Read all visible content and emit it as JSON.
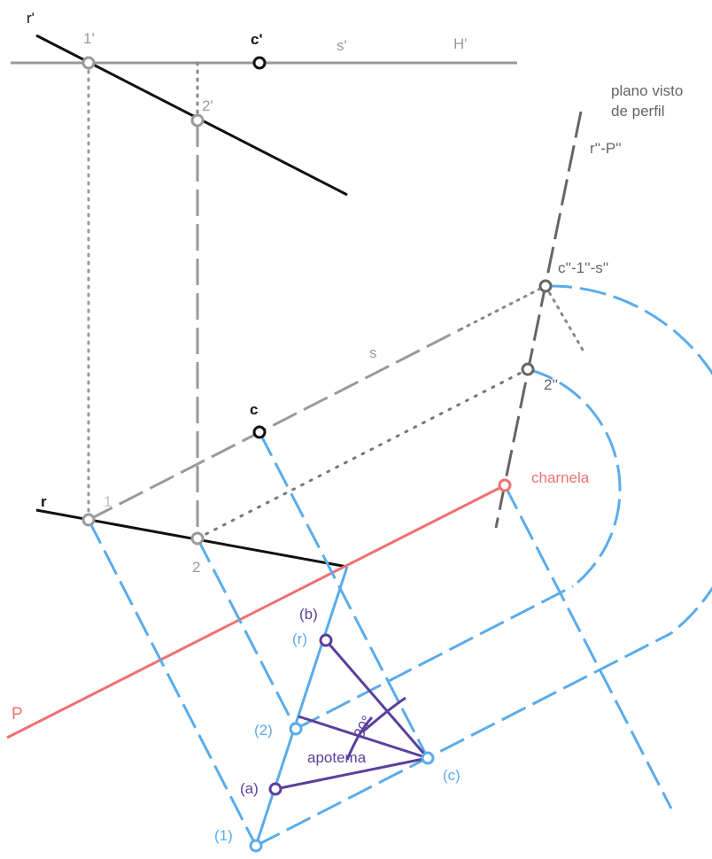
{
  "colors": {
    "black": "#111111",
    "gray": "#9a9a9a",
    "darkgray": "#666666",
    "blue": "#5aacea",
    "purple": "#5b3f9c",
    "red": "#f07070"
  },
  "labels": {
    "r_prime": "r'",
    "one_prime": "1'",
    "c_prime": "c'",
    "s_prime": "s'",
    "H_prime": "H'",
    "two_prime": "2'",
    "plano_line1": "plano visto",
    "plano_line2": "de perfil",
    "r_pp_P_pp": "r''-P''",
    "c_pp_group": "c''-1''-s''",
    "s": "s",
    "two_pp": "2''",
    "c": "c",
    "charnela": "charnela",
    "r": "r",
    "one": "1",
    "two": "2",
    "b_par": "(b)",
    "r_par": "(r)",
    "P": "P",
    "two_par": "(2)",
    "angle_30": "30°",
    "apotema": "apotema",
    "c_par": "(c)",
    "a_par": "(a)",
    "one_par": "(1)"
  }
}
